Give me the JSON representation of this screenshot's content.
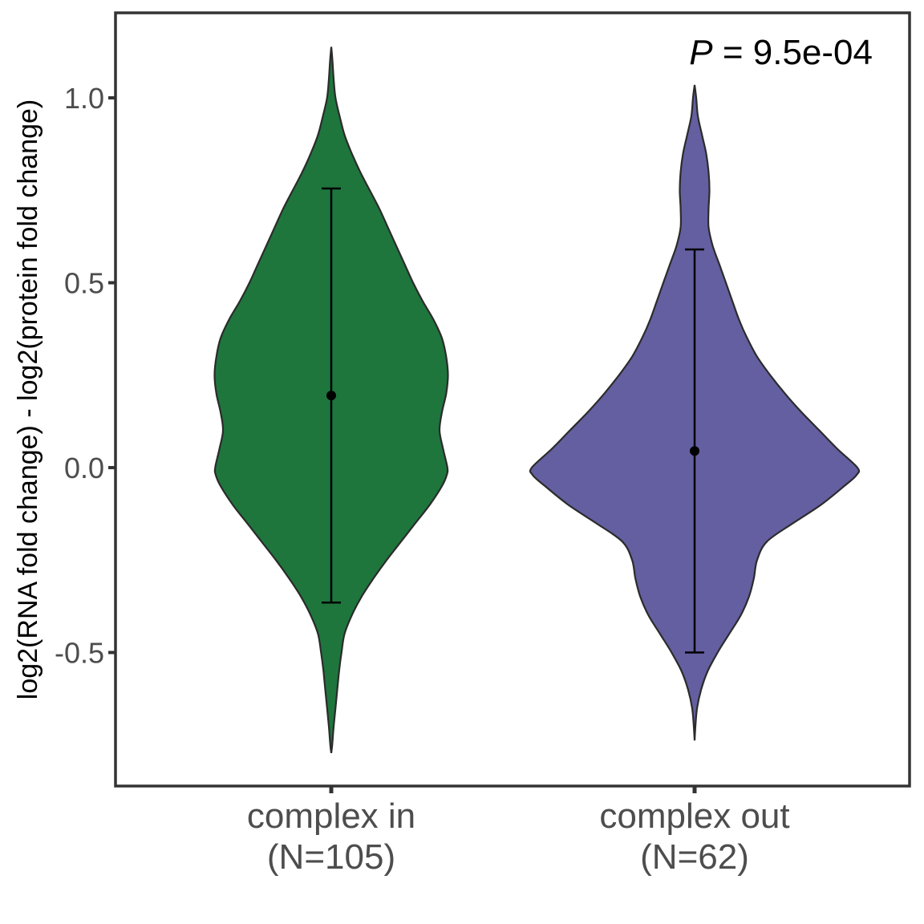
{
  "chart_data": {
    "type": "violin",
    "title": "",
    "xlabel": "",
    "ylabel": "log2(RNA fold change) - log2(protein fold change)",
    "ylim": [
      -0.86,
      1.24
    ],
    "yticks": [
      -0.5,
      0.0,
      0.5,
      1.0
    ],
    "ytick_labels": [
      "-0.5",
      "0.0",
      "0.5",
      "1.0"
    ],
    "grid": false,
    "annotation": {
      "p_symbol": "P",
      "p_text": " = 9.5e-04"
    },
    "groups": [
      {
        "name": "complex in",
        "n_label": "(N=105)",
        "color": "#1e763d",
        "mean": 0.195,
        "error_low": -0.365,
        "error_high": 0.755,
        "density": [
          [
            1.138,
            0.0
          ],
          [
            1.1,
            0.01
          ],
          [
            1.05,
            0.02
          ],
          [
            1.0,
            0.035
          ],
          [
            0.95,
            0.07
          ],
          [
            0.9,
            0.11
          ],
          [
            0.85,
            0.17
          ],
          [
            0.8,
            0.24
          ],
          [
            0.75,
            0.32
          ],
          [
            0.7,
            0.4
          ],
          [
            0.65,
            0.47
          ],
          [
            0.6,
            0.54
          ],
          [
            0.55,
            0.61
          ],
          [
            0.5,
            0.68
          ],
          [
            0.45,
            0.76
          ],
          [
            0.4,
            0.85
          ],
          [
            0.35,
            0.92
          ],
          [
            0.3,
            0.955
          ],
          [
            0.25,
            0.97
          ],
          [
            0.2,
            0.955
          ],
          [
            0.15,
            0.92
          ],
          [
            0.1,
            0.9
          ],
          [
            0.05,
            0.93
          ],
          [
            0.0,
            0.965
          ],
          [
            -0.02,
            0.96
          ],
          [
            -0.05,
            0.92
          ],
          [
            -0.1,
            0.82
          ],
          [
            -0.15,
            0.7
          ],
          [
            -0.2,
            0.58
          ],
          [
            -0.25,
            0.46
          ],
          [
            -0.3,
            0.35
          ],
          [
            -0.35,
            0.25
          ],
          [
            -0.4,
            0.17
          ],
          [
            -0.45,
            0.11
          ],
          [
            -0.5,
            0.085
          ],
          [
            -0.55,
            0.065
          ],
          [
            -0.6,
            0.05
          ],
          [
            -0.65,
            0.035
          ],
          [
            -0.7,
            0.02
          ],
          [
            -0.75,
            0.008
          ],
          [
            -0.772,
            0.0
          ]
        ]
      },
      {
        "name": "complex out",
        "n_label": "(N=62)",
        "color": "#645fa1",
        "mean": 0.045,
        "error_low": -0.5,
        "error_high": 0.59,
        "density": [
          [
            1.035,
            0.0
          ],
          [
            1.0,
            0.01
          ],
          [
            0.95,
            0.02
          ],
          [
            0.9,
            0.045
          ],
          [
            0.85,
            0.07
          ],
          [
            0.8,
            0.085
          ],
          [
            0.75,
            0.09
          ],
          [
            0.7,
            0.085
          ],
          [
            0.65,
            0.085
          ],
          [
            0.6,
            0.11
          ],
          [
            0.55,
            0.15
          ],
          [
            0.5,
            0.19
          ],
          [
            0.45,
            0.23
          ],
          [
            0.4,
            0.27
          ],
          [
            0.35,
            0.32
          ],
          [
            0.3,
            0.38
          ],
          [
            0.25,
            0.46
          ],
          [
            0.2,
            0.55
          ],
          [
            0.15,
            0.65
          ],
          [
            0.1,
            0.76
          ],
          [
            0.05,
            0.87
          ],
          [
            0.0,
            0.99
          ],
          [
            -0.02,
            0.985
          ],
          [
            -0.05,
            0.91
          ],
          [
            -0.1,
            0.77
          ],
          [
            -0.15,
            0.6
          ],
          [
            -0.2,
            0.44
          ],
          [
            -0.25,
            0.38
          ],
          [
            -0.3,
            0.36
          ],
          [
            -0.35,
            0.33
          ],
          [
            -0.4,
            0.28
          ],
          [
            -0.45,
            0.21
          ],
          [
            -0.5,
            0.14
          ],
          [
            -0.55,
            0.08
          ],
          [
            -0.6,
            0.04
          ],
          [
            -0.65,
            0.015
          ],
          [
            -0.7,
            0.005
          ],
          [
            -0.738,
            0.0
          ]
        ]
      }
    ]
  }
}
